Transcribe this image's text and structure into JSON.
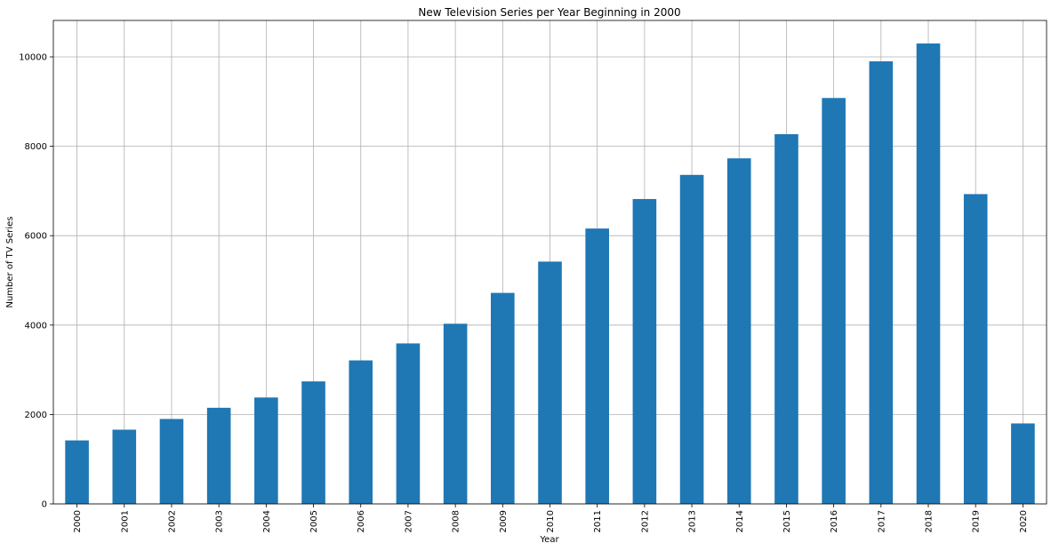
{
  "chart_data": {
    "type": "bar",
    "title": "New Television Series per Year Beginning in 2000",
    "xlabel": "Year",
    "ylabel": "Number of TV Series",
    "categories": [
      "2000",
      "2001",
      "2002",
      "2003",
      "2004",
      "2005",
      "2006",
      "2007",
      "2008",
      "2009",
      "2010",
      "2011",
      "2012",
      "2013",
      "2014",
      "2015",
      "2016",
      "2017",
      "2018",
      "2019",
      "2020"
    ],
    "values": [
      1420,
      1660,
      1900,
      2150,
      2380,
      2740,
      3210,
      3590,
      4030,
      4720,
      5420,
      6160,
      6820,
      7360,
      7730,
      8270,
      9080,
      9900,
      10300,
      6930,
      1800
    ],
    "ylim": [
      0,
      10815
    ],
    "yticks": [
      0,
      2000,
      4000,
      6000,
      8000,
      10000
    ],
    "grid": true,
    "bar_color": "#1f77b4",
    "grid_color": "#b0b0b0"
  }
}
